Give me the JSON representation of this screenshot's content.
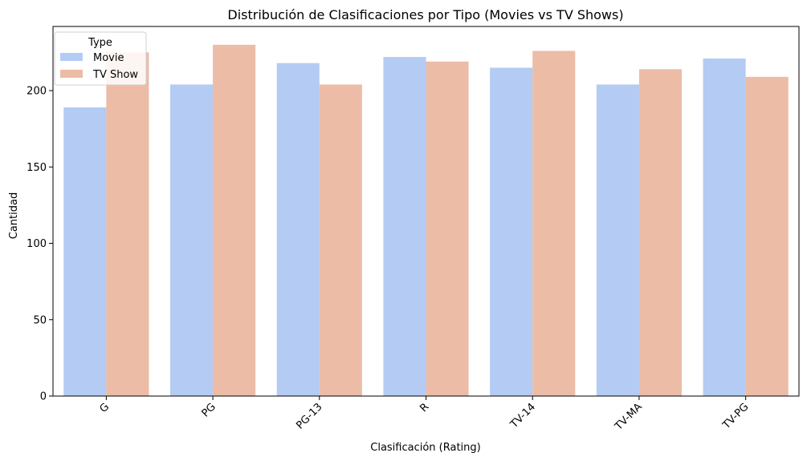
{
  "chart_data": {
    "type": "bar",
    "title": "Distribución de Clasificaciones por Tipo (Movies vs TV Shows)",
    "xlabel": "Clasificación (Rating)",
    "ylabel": "Cantidad",
    "categories": [
      "G",
      "PG",
      "PG-13",
      "R",
      "TV-14",
      "TV-MA",
      "TV-PG"
    ],
    "series": [
      {
        "name": "Movie",
        "color": "#b4cbf4",
        "values": [
          189,
          204,
          218,
          222,
          215,
          204,
          221
        ]
      },
      {
        "name": "TV Show",
        "color": "#ecbca7",
        "values": [
          225,
          230,
          204,
          219,
          226,
          214,
          209
        ]
      }
    ],
    "ylim": [
      0,
      242
    ],
    "yticks": [
      0,
      50,
      100,
      150,
      200
    ],
    "legend": {
      "title": "Type",
      "placement": "top-left"
    },
    "grid": false
  }
}
